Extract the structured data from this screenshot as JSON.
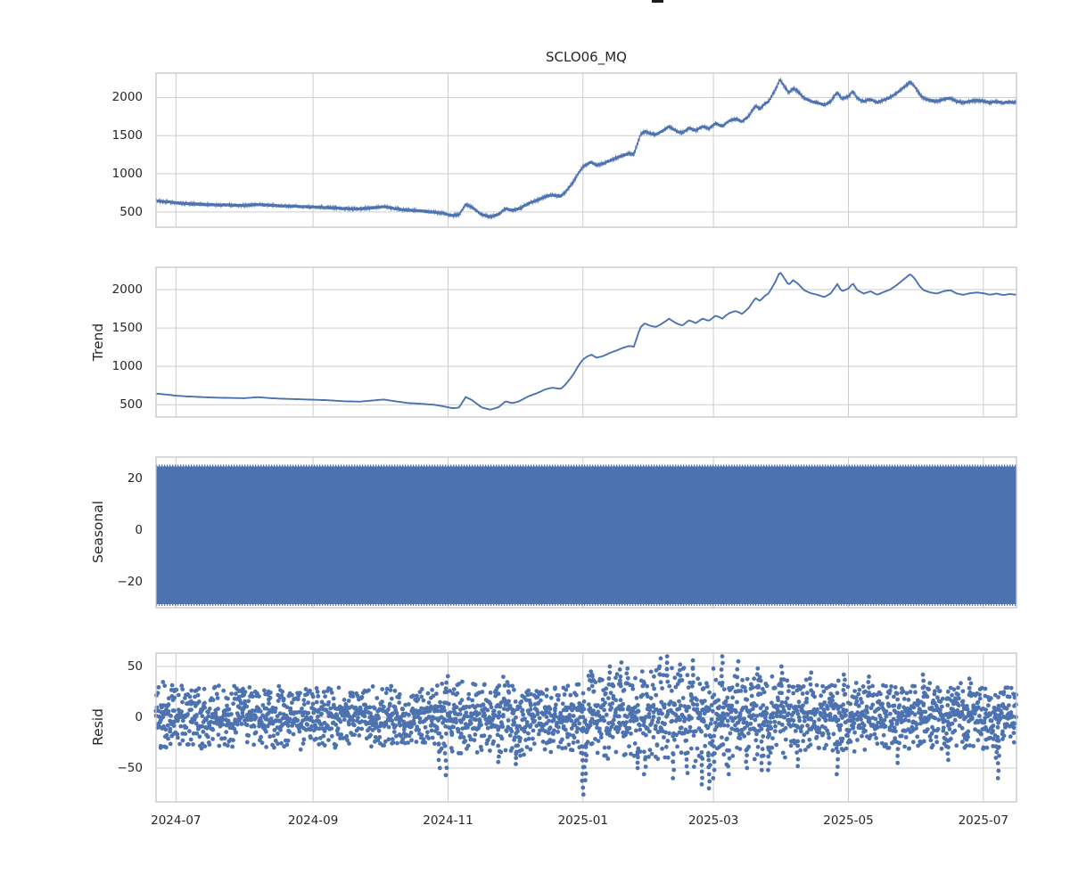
{
  "figure": {
    "cropped_suptitle_underscore_visible": true,
    "colors": {
      "line": "#4c72b0",
      "grid": "#cdcdcd",
      "spine": "#c6c6c6",
      "text": "#262626",
      "background": "#ffffff"
    },
    "x_axis": {
      "tick_labels": [
        "2024-07",
        "2024-09",
        "2024-11",
        "2025-01",
        "2025-03",
        "2025-05",
        "2025-07"
      ],
      "tick_positions_days": [
        9,
        71,
        132,
        193,
        252,
        313,
        374
      ],
      "span_days": 389,
      "x_start_date_approx": "2024-06-22"
    }
  },
  "chart_data": [
    {
      "id": "observed",
      "type": "line",
      "title": "SCLO06_MQ",
      "ylabel": "",
      "ylim": [
        300,
        2320
      ],
      "yticks": [
        2000,
        1500,
        1000,
        500
      ],
      "noise_amplitude": 23,
      "control_points": [
        [
          0,
          645
        ],
        [
          6,
          628
        ],
        [
          9,
          618
        ],
        [
          14,
          608
        ],
        [
          20,
          600
        ],
        [
          27,
          592
        ],
        [
          34,
          588
        ],
        [
          40,
          585
        ],
        [
          46,
          598
        ],
        [
          52,
          585
        ],
        [
          58,
          577
        ],
        [
          64,
          572
        ],
        [
          71,
          565
        ],
        [
          78,
          558
        ],
        [
          85,
          545
        ],
        [
          92,
          540
        ],
        [
          99,
          558
        ],
        [
          103,
          568
        ],
        [
          108,
          545
        ],
        [
          114,
          522
        ],
        [
          120,
          512
        ],
        [
          126,
          498
        ],
        [
          130,
          478
        ],
        [
          134,
          455
        ],
        [
          137,
          462
        ],
        [
          140,
          600
        ],
        [
          143,
          558
        ],
        [
          147,
          468
        ],
        [
          151,
          435
        ],
        [
          155,
          470
        ],
        [
          158,
          545
        ],
        [
          161,
          520
        ],
        [
          164,
          542
        ],
        [
          168,
          605
        ],
        [
          172,
          648
        ],
        [
          176,
          700
        ],
        [
          179,
          722
        ],
        [
          183,
          706
        ],
        [
          185,
          760
        ],
        [
          187,
          830
        ],
        [
          189,
          910
        ],
        [
          191,
          1010
        ],
        [
          193,
          1090
        ],
        [
          195,
          1130
        ],
        [
          197,
          1152
        ],
        [
          199,
          1112
        ],
        [
          202,
          1132
        ],
        [
          205,
          1172
        ],
        [
          208,
          1205
        ],
        [
          211,
          1240
        ],
        [
          214,
          1266
        ],
        [
          216,
          1255
        ],
        [
          219,
          1510
        ],
        [
          221,
          1560
        ],
        [
          223,
          1532
        ],
        [
          226,
          1512
        ],
        [
          229,
          1562
        ],
        [
          232,
          1620
        ],
        [
          235,
          1562
        ],
        [
          238,
          1532
        ],
        [
          241,
          1602
        ],
        [
          244,
          1562
        ],
        [
          247,
          1622
        ],
        [
          250,
          1592
        ],
        [
          253,
          1662
        ],
        [
          256,
          1622
        ],
        [
          259,
          1692
        ],
        [
          262,
          1722
        ],
        [
          265,
          1682
        ],
        [
          268,
          1762
        ],
        [
          271,
          1892
        ],
        [
          273,
          1850
        ],
        [
          275,
          1912
        ],
        [
          277,
          1952
        ],
        [
          280,
          2102
        ],
        [
          282,
          2232
        ],
        [
          284,
          2150
        ],
        [
          286,
          2060
        ],
        [
          288,
          2122
        ],
        [
          290,
          2082
        ],
        [
          293,
          1992
        ],
        [
          296,
          1952
        ],
        [
          299,
          1932
        ],
        [
          302,
          1902
        ],
        [
          305,
          1948
        ],
        [
          308,
          2072
        ],
        [
          310,
          1978
        ],
        [
          313,
          2012
        ],
        [
          315,
          2082
        ],
        [
          317,
          1992
        ],
        [
          320,
          1948
        ],
        [
          323,
          1978
        ],
        [
          326,
          1932
        ],
        [
          329,
          1968
        ],
        [
          332,
          2002
        ],
        [
          335,
          2062
        ],
        [
          338,
          2132
        ],
        [
          341,
          2202
        ],
        [
          343,
          2142
        ],
        [
          345,
          2052
        ],
        [
          347,
          1992
        ],
        [
          350,
          1962
        ],
        [
          353,
          1948
        ],
        [
          356,
          1978
        ],
        [
          359,
          1992
        ],
        [
          362,
          1948
        ],
        [
          365,
          1932
        ],
        [
          368,
          1952
        ],
        [
          371,
          1962
        ],
        [
          374,
          1952
        ],
        [
          377,
          1932
        ],
        [
          380,
          1948
        ],
        [
          383,
          1928
        ],
        [
          386,
          1942
        ],
        [
          389,
          1932
        ]
      ]
    },
    {
      "id": "trend",
      "type": "line",
      "ylabel": "Trend",
      "ylim": [
        340,
        2290
      ],
      "yticks": [
        2000,
        1500,
        1000,
        500
      ],
      "control_points": [
        [
          0,
          645
        ],
        [
          6,
          628
        ],
        [
          9,
          618
        ],
        [
          14,
          608
        ],
        [
          20,
          600
        ],
        [
          27,
          592
        ],
        [
          34,
          588
        ],
        [
          40,
          585
        ],
        [
          46,
          598
        ],
        [
          52,
          585
        ],
        [
          58,
          577
        ],
        [
          64,
          572
        ],
        [
          71,
          565
        ],
        [
          78,
          558
        ],
        [
          85,
          545
        ],
        [
          92,
          540
        ],
        [
          99,
          558
        ],
        [
          103,
          568
        ],
        [
          108,
          545
        ],
        [
          114,
          522
        ],
        [
          120,
          512
        ],
        [
          126,
          498
        ],
        [
          130,
          478
        ],
        [
          134,
          455
        ],
        [
          137,
          462
        ],
        [
          140,
          600
        ],
        [
          143,
          558
        ],
        [
          147,
          468
        ],
        [
          151,
          435
        ],
        [
          155,
          470
        ],
        [
          158,
          545
        ],
        [
          161,
          520
        ],
        [
          164,
          542
        ],
        [
          168,
          605
        ],
        [
          172,
          648
        ],
        [
          176,
          700
        ],
        [
          179,
          722
        ],
        [
          183,
          706
        ],
        [
          185,
          760
        ],
        [
          187,
          830
        ],
        [
          189,
          910
        ],
        [
          191,
          1010
        ],
        [
          193,
          1090
        ],
        [
          195,
          1130
        ],
        [
          197,
          1152
        ],
        [
          199,
          1112
        ],
        [
          202,
          1132
        ],
        [
          205,
          1172
        ],
        [
          208,
          1205
        ],
        [
          211,
          1240
        ],
        [
          214,
          1266
        ],
        [
          216,
          1255
        ],
        [
          219,
          1510
        ],
        [
          221,
          1560
        ],
        [
          223,
          1532
        ],
        [
          226,
          1512
        ],
        [
          229,
          1562
        ],
        [
          232,
          1620
        ],
        [
          235,
          1562
        ],
        [
          238,
          1532
        ],
        [
          241,
          1602
        ],
        [
          244,
          1562
        ],
        [
          247,
          1622
        ],
        [
          250,
          1592
        ],
        [
          253,
          1662
        ],
        [
          256,
          1622
        ],
        [
          259,
          1692
        ],
        [
          262,
          1722
        ],
        [
          265,
          1682
        ],
        [
          268,
          1762
        ],
        [
          271,
          1892
        ],
        [
          273,
          1850
        ],
        [
          275,
          1912
        ],
        [
          277,
          1952
        ],
        [
          280,
          2102
        ],
        [
          282,
          2232
        ],
        [
          284,
          2150
        ],
        [
          286,
          2060
        ],
        [
          288,
          2122
        ],
        [
          290,
          2082
        ],
        [
          293,
          1992
        ],
        [
          296,
          1952
        ],
        [
          299,
          1932
        ],
        [
          302,
          1902
        ],
        [
          305,
          1948
        ],
        [
          308,
          2072
        ],
        [
          310,
          1978
        ],
        [
          313,
          2012
        ],
        [
          315,
          2082
        ],
        [
          317,
          1992
        ],
        [
          320,
          1948
        ],
        [
          323,
          1978
        ],
        [
          326,
          1932
        ],
        [
          329,
          1968
        ],
        [
          332,
          2002
        ],
        [
          335,
          2062
        ],
        [
          338,
          2132
        ],
        [
          341,
          2202
        ],
        [
          343,
          2142
        ],
        [
          345,
          2052
        ],
        [
          347,
          1992
        ],
        [
          350,
          1962
        ],
        [
          353,
          1948
        ],
        [
          356,
          1978
        ],
        [
          359,
          1992
        ],
        [
          362,
          1948
        ],
        [
          365,
          1932
        ],
        [
          368,
          1952
        ],
        [
          371,
          1962
        ],
        [
          374,
          1952
        ],
        [
          377,
          1932
        ],
        [
          380,
          1948
        ],
        [
          383,
          1928
        ],
        [
          386,
          1942
        ],
        [
          389,
          1932
        ]
      ]
    },
    {
      "id": "seasonal",
      "type": "area-band",
      "ylabel": "Seasonal",
      "ylim": [
        -30,
        28.2
      ],
      "yticks": [
        20,
        0,
        -20
      ],
      "band_top": 24.6,
      "band_bottom": -28.6,
      "note": "high-frequency daily seasonal oscillation rendered as a solid band"
    },
    {
      "id": "resid",
      "type": "scatter",
      "ylabel": "Resid",
      "ylim": [
        -83.3,
        63.2
      ],
      "yticks": [
        50,
        0,
        -50
      ],
      "envelope": [
        [
          0,
          30
        ],
        [
          15,
          27
        ],
        [
          30,
          26
        ],
        [
          45,
          28
        ],
        [
          60,
          26
        ],
        [
          75,
          27
        ],
        [
          90,
          24
        ],
        [
          105,
          27
        ],
        [
          115,
          24
        ],
        [
          125,
          28
        ],
        [
          132,
          34
        ],
        [
          140,
          30
        ],
        [
          150,
          32
        ],
        [
          160,
          34
        ],
        [
          170,
          31
        ],
        [
          180,
          29
        ],
        [
          190,
          32
        ],
        [
          196,
          36
        ],
        [
          205,
          38
        ],
        [
          215,
          40
        ],
        [
          225,
          40
        ],
        [
          235,
          42
        ],
        [
          245,
          40
        ],
        [
          252,
          42
        ],
        [
          260,
          38
        ],
        [
          270,
          36
        ],
        [
          280,
          38
        ],
        [
          290,
          33
        ],
        [
          300,
          30
        ],
        [
          310,
          32
        ],
        [
          320,
          28
        ],
        [
          330,
          30
        ],
        [
          340,
          27
        ],
        [
          350,
          29
        ],
        [
          360,
          27
        ],
        [
          370,
          29
        ],
        [
          380,
          27
        ],
        [
          389,
          28
        ]
      ],
      "outliers": [
        [
          128,
          -50
        ],
        [
          131,
          -57
        ],
        [
          155,
          -44
        ],
        [
          163,
          -46
        ],
        [
          193,
          -76
        ],
        [
          194,
          -62
        ],
        [
          197,
          45
        ],
        [
          205,
          50
        ],
        [
          210,
          54
        ],
        [
          213,
          48
        ],
        [
          218,
          -50
        ],
        [
          221,
          -56
        ],
        [
          228,
          58
        ],
        [
          231,
          60
        ],
        [
          234,
          -60
        ],
        [
          237,
          52
        ],
        [
          240,
          -55
        ],
        [
          243,
          56
        ],
        [
          247,
          -66
        ],
        [
          250,
          -70
        ],
        [
          252,
          -60
        ],
        [
          256,
          60
        ],
        [
          259,
          -56
        ],
        [
          263,
          55
        ],
        [
          267,
          -50
        ],
        [
          272,
          48
        ],
        [
          274,
          -52
        ],
        [
          277,
          -52
        ],
        [
          283,
          50
        ],
        [
          290,
          -48
        ],
        [
          296,
          44
        ],
        [
          308,
          -56
        ],
        [
          311,
          42
        ],
        [
          322,
          40
        ],
        [
          335,
          -45
        ],
        [
          347,
          42
        ],
        [
          358,
          -42
        ],
        [
          368,
          38
        ],
        [
          380,
          -40
        ],
        [
          381,
          -60
        ]
      ]
    }
  ]
}
